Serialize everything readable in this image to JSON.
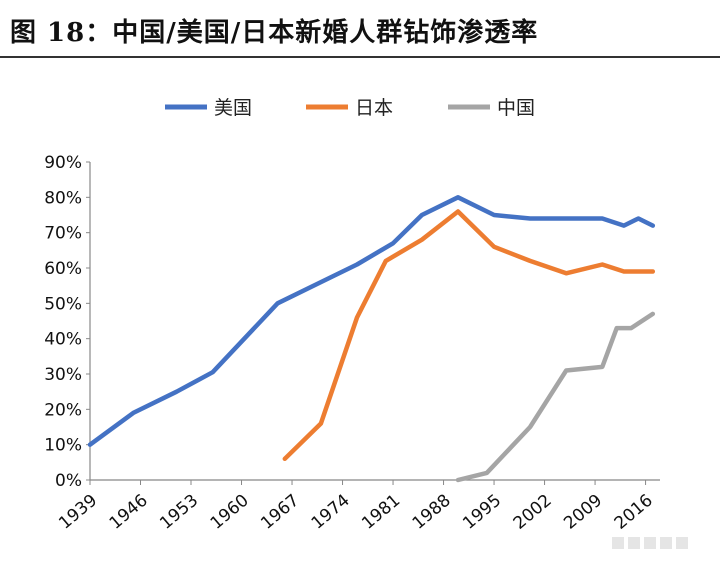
{
  "figure": {
    "title": "图 18：中国/美国/日本新婚人群钻饰渗透率"
  },
  "chart_data": {
    "type": "line",
    "ylim": [
      0,
      90
    ],
    "y_ticks": [
      "0%",
      "10%",
      "20%",
      "30%",
      "40%",
      "50%",
      "60%",
      "70%",
      "80%",
      "90%"
    ],
    "x_range": [
      1939,
      2018
    ],
    "x_ticks": [
      "1939",
      "1946",
      "1953",
      "1960",
      "1967",
      "1974",
      "1981",
      "1988",
      "1995",
      "2002",
      "2009",
      "2016"
    ],
    "grid": false,
    "legend_position": "top-center",
    "series": [
      {
        "name": "美国",
        "color": "#4472C4",
        "points": [
          [
            1939,
            10
          ],
          [
            1945,
            19
          ],
          [
            1951,
            25
          ],
          [
            1956,
            30.5
          ],
          [
            1965,
            50
          ],
          [
            1971,
            56
          ],
          [
            1976,
            61
          ],
          [
            1981,
            67
          ],
          [
            1985,
            75
          ],
          [
            1990,
            80
          ],
          [
            1995,
            75
          ],
          [
            2000,
            74
          ],
          [
            2005,
            74
          ],
          [
            2010,
            74
          ],
          [
            2013,
            72
          ],
          [
            2015,
            74
          ],
          [
            2017,
            72
          ]
        ]
      },
      {
        "name": "日本",
        "color": "#ED7D31",
        "points": [
          [
            1966,
            6
          ],
          [
            1971,
            16
          ],
          [
            1976,
            46
          ],
          [
            1980,
            62
          ],
          [
            1985,
            68
          ],
          [
            1990,
            76
          ],
          [
            1995,
            66
          ],
          [
            2000,
            62
          ],
          [
            2005,
            58.5
          ],
          [
            2010,
            61
          ],
          [
            2013,
            59
          ],
          [
            2017,
            59
          ]
        ]
      },
      {
        "name": "中国",
        "color": "#A5A5A5",
        "points": [
          [
            1990,
            0
          ],
          [
            1994,
            2
          ],
          [
            2000,
            15
          ],
          [
            2005,
            31
          ],
          [
            2010,
            32
          ],
          [
            2012,
            43
          ],
          [
            2014,
            43
          ],
          [
            2017,
            47
          ]
        ]
      }
    ]
  }
}
